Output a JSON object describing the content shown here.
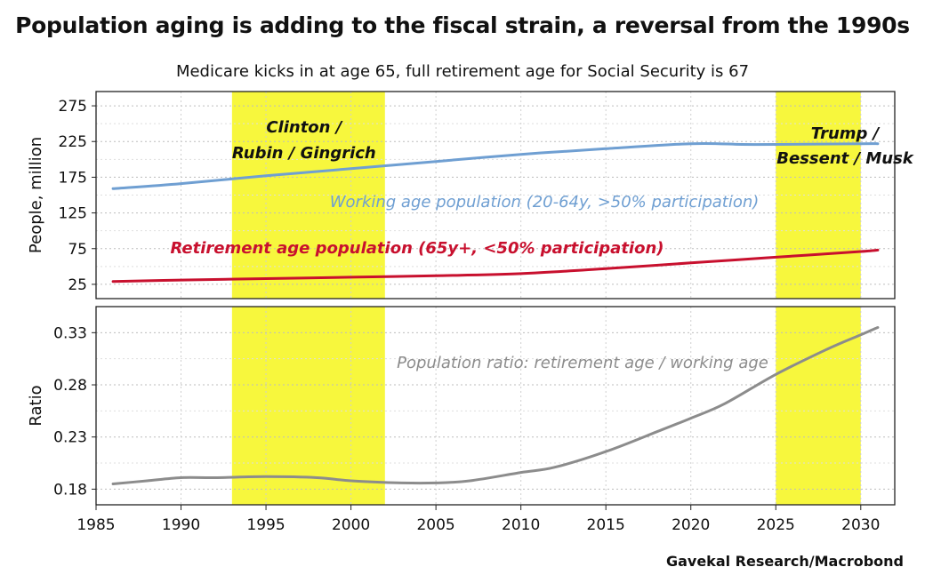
{
  "title": "Population aging is adding to the fiscal strain, a reversal from the 1990s",
  "subtitle": "Medicare kicks in at age 65, full retirement age for Social Security is 67",
  "source": "Gavekal Research/Macrobond",
  "colors": {
    "working": "#6f9fd2",
    "retirement": "#c8102e",
    "ratio": "#8c8c8c",
    "highlight": "#f7f73d"
  },
  "chart_data": [
    {
      "type": "line",
      "ylabel": "People, million",
      "yticks": [
        25,
        75,
        125,
        175,
        225,
        275
      ],
      "ylim": [
        5,
        295
      ],
      "xlim": [
        1985,
        2032
      ],
      "grid": true,
      "highlights": [
        {
          "from": 1993,
          "to": 2002,
          "label": [
            "Clinton /",
            "Rubin / Gingrich"
          ]
        },
        {
          "from": 2025,
          "to": 2030,
          "label": [
            "Trump /",
            "Bessent / Musk"
          ]
        }
      ],
      "series": [
        {
          "name": "Working age population (20-64y, >50% participation)",
          "x": [
            1986,
            1990,
            1995,
            2000,
            2005,
            2010,
            2015,
            2020,
            2023,
            2025,
            2030,
            2031
          ],
          "y": [
            159,
            166,
            177,
            187,
            197,
            207,
            215,
            222,
            221,
            221,
            222,
            222
          ]
        },
        {
          "name": "Retirement age population (65y+, <50% participation)",
          "x": [
            1986,
            1990,
            1995,
            2000,
            2005,
            2010,
            2015,
            2020,
            2025,
            2030,
            2031
          ],
          "y": [
            29,
            31,
            33,
            35,
            37,
            40,
            47,
            55,
            63,
            71,
            73
          ]
        }
      ]
    },
    {
      "type": "line",
      "ylabel": "Ratio",
      "yticks": [
        0.18,
        0.23,
        0.28,
        0.33
      ],
      "ylim": [
        0.165,
        0.355
      ],
      "xlim": [
        1985,
        2032
      ],
      "xticks": [
        1985,
        1990,
        1995,
        2000,
        2005,
        2010,
        2015,
        2020,
        2025,
        2030
      ],
      "grid": true,
      "series": [
        {
          "name": "Population ratio: retirement age / working age",
          "x": [
            1986,
            1988,
            1990,
            1992,
            1995,
            1998,
            2000,
            2003,
            2005,
            2007,
            2010,
            2012,
            2015,
            2018,
            2020,
            2022,
            2025,
            2028,
            2030,
            2031
          ],
          "y": [
            0.185,
            0.188,
            0.191,
            0.191,
            0.192,
            0.191,
            0.188,
            0.186,
            0.186,
            0.188,
            0.196,
            0.201,
            0.216,
            0.235,
            0.248,
            0.262,
            0.29,
            0.314,
            0.328,
            0.335
          ]
        }
      ]
    }
  ]
}
